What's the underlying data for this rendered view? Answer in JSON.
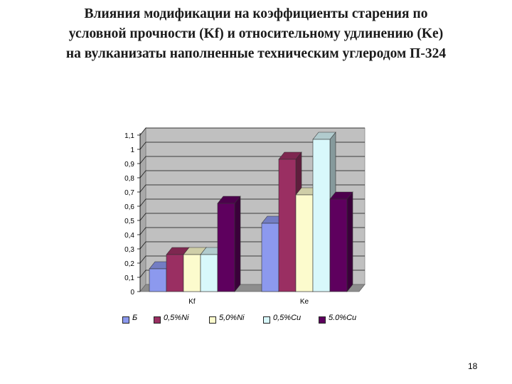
{
  "slide": {
    "title_lines": [
      "Влияния модификации на коэффициенты старения по",
      "условной прочности (Kf) и относительному удлинению (Ke)",
      "на вулканизаты наполненные техническим углеродом П-324"
    ],
    "page_number": "18"
  },
  "chart_data": {
    "type": "bar",
    "style": "3d-clustered-column",
    "categories": [
      "Kf",
      "Ke"
    ],
    "series": [
      {
        "name": "Б",
        "values": [
          0.16,
          0.48
        ],
        "color": "#8c99ee"
      },
      {
        "name": "0,5%Ni",
        "values": [
          0.26,
          0.93
        ],
        "color": "#9a2f62"
      },
      {
        "name": "5,0%Ni",
        "values": [
          0.26,
          0.68
        ],
        "color": "#fcfbcd"
      },
      {
        "name": "0,5%Cu",
        "values": [
          0.26,
          1.07
        ],
        "color": "#d8f8fb"
      },
      {
        "name": "5.0%Cu",
        "values": [
          0.62,
          0.65
        ],
        "color": "#5e005e"
      }
    ],
    "ylim": [
      0,
      1.1
    ],
    "yticks": [
      "0",
      "0,1",
      "0,2",
      "0,3",
      "0,4",
      "0,5",
      "0,6",
      "0,7",
      "0,8",
      "0,9",
      "1",
      "1,1"
    ],
    "grid": true,
    "background": "#c0c0c0",
    "legend_position": "bottom"
  }
}
